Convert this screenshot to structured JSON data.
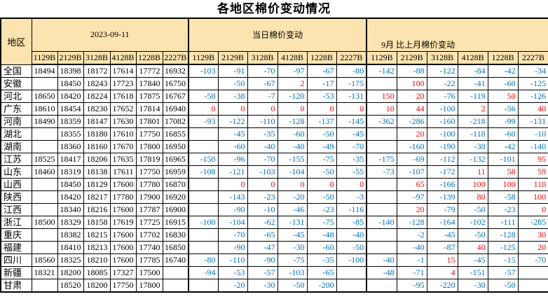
{
  "title": "各地区棉价变动情况",
  "colors": {
    "header_bg": "#FCE4B0",
    "negative_value": "#0070C0",
    "positive_value": "#FF0000",
    "border": "#000000"
  },
  "table": {
    "region_header": "地区",
    "grades": [
      "1129B",
      "2129B",
      "3128B",
      "4128B",
      "1228B",
      "2227B"
    ],
    "groups": [
      {
        "label": "2023-09-11"
      },
      {
        "label": "当日棉价变动"
      },
      {
        "label": "9月 比上月棉价变动"
      }
    ],
    "rows": [
      {
        "region": "全国",
        "prices": [
          "18494",
          "18398",
          "18172",
          "17614",
          "17772",
          "16932"
        ],
        "daily": [
          "-103",
          "-91",
          "-70",
          "-97",
          "-67",
          "-80"
        ],
        "monthly": [
          "-142",
          "-88",
          "-122",
          "-84",
          "-42",
          "-34"
        ]
      },
      {
        "region": "安徽",
        "prices": [
          "",
          "18450",
          "18243",
          "17723",
          "17840",
          "16750"
        ],
        "daily": [
          "",
          "-50",
          "-67",
          "2",
          "-17",
          "-175"
        ],
        "monthly": [
          "",
          "100",
          "-22",
          "-41",
          "-60",
          "-125"
        ]
      },
      {
        "region": "河北",
        "prices": [
          "18650",
          "18420",
          "18224",
          "17618",
          "17875",
          "16767"
        ],
        "daily": [
          "-50",
          "-38",
          "-7",
          "-120",
          "-53",
          "-131"
        ],
        "monthly": [
          "150",
          "20",
          "-76",
          "-119",
          "50",
          "-126"
        ]
      },
      {
        "region": "广东",
        "prices": [
          "18610",
          "18454",
          "18230",
          "17652",
          "17814",
          "16940"
        ],
        "daily": [
          "0",
          "0",
          "0",
          "0",
          "0",
          "0"
        ],
        "monthly": [
          "10",
          "44",
          "-100",
          "2",
          "-56",
          "40"
        ]
      },
      {
        "region": "河南",
        "prices": [
          "18490",
          "18359",
          "18147",
          "17630",
          "17801",
          "17082"
        ],
        "daily": [
          "-93",
          "-122",
          "-110",
          "-128",
          "-137",
          "-145"
        ],
        "monthly": [
          "-362",
          "-286",
          "-160",
          "-218",
          "-99",
          "-131"
        ]
      },
      {
        "region": "湖北",
        "prices": [
          "",
          "18355",
          "18180",
          "17610",
          "17750",
          "16855"
        ],
        "daily": [
          "",
          "-45",
          "-35",
          "-60",
          "-50",
          "-45"
        ],
        "monthly": [
          "",
          "20",
          "-100",
          "-118",
          "-60",
          "-10"
        ]
      },
      {
        "region": "湖南",
        "prices": [
          "",
          "18360",
          "18160",
          "17670",
          "17800",
          "16950"
        ],
        "daily": [
          "",
          "-60",
          "-40",
          "-40",
          "-49",
          "-70"
        ],
        "monthly": [
          "",
          "-160",
          "-190",
          "-30",
          "-42",
          "-140"
        ]
      },
      {
        "region": "江苏",
        "prices": [
          "18525",
          "18417",
          "18206",
          "17635",
          "17819",
          "16965"
        ],
        "daily": [
          "-150",
          "-96",
          "-70",
          "-155",
          "-75",
          "-35"
        ],
        "monthly": [
          "-175",
          "-69",
          "-112",
          "-132",
          "-101",
          "95"
        ]
      },
      {
        "region": "山东",
        "prices": [
          "18460",
          "18319",
          "18138",
          "17611",
          "17750",
          "16959"
        ],
        "daily": [
          "-108",
          "-121",
          "-103",
          "-104",
          "-50",
          "-55"
        ],
        "monthly": [
          "-73",
          "-107",
          "-172",
          "11",
          "58",
          "59"
        ]
      },
      {
        "region": "山西",
        "prices": [
          "",
          "18450",
          "18129",
          "17600",
          "17780",
          "16870"
        ],
        "daily": [
          "",
          "0",
          "0",
          "0",
          "0",
          "0"
        ],
        "monthly": [
          "",
          "65",
          "-166",
          "100",
          "100",
          "110"
        ]
      },
      {
        "region": "陕西",
        "prices": [
          "",
          "18420",
          "18217",
          "17780",
          "17900",
          "16920"
        ],
        "daily": [
          "",
          "-143",
          "-23",
          "-20",
          "-50",
          "-3"
        ],
        "monthly": [
          "",
          "-97",
          "-139",
          "80",
          "-58",
          "100"
        ]
      },
      {
        "region": "江西",
        "prices": [
          "",
          "18340",
          "18216",
          "17600",
          "17787",
          "16900"
        ],
        "daily": [
          "",
          "-90",
          "-10",
          "-46",
          "-23",
          "-116"
        ],
        "monthly": [
          "",
          "20",
          "-79",
          "-50",
          "-23",
          "0"
        ]
      },
      {
        "region": "浙江",
        "prices": [
          "18500",
          "18329",
          "18158",
          "17619",
          "17725",
          "16915"
        ],
        "daily": [
          "-100",
          "-104",
          "-62",
          "-131",
          "-75",
          "-85"
        ],
        "monthly": [
          "-140",
          "-128",
          "-164",
          "-102",
          "-111",
          "-285"
        ]
      },
      {
        "region": "重庆",
        "prices": [
          "",
          "18382",
          "18215",
          "17600",
          "17702",
          "16830"
        ],
        "daily": [
          "",
          "-70",
          "-65",
          "-45",
          "-48",
          "-40"
        ],
        "monthly": [
          "",
          "-2",
          "-45",
          "-50",
          "-128",
          "30"
        ]
      },
      {
        "region": "福建",
        "prices": [
          "",
          "18410",
          "18213",
          "17600",
          "17740",
          "16850"
        ],
        "daily": [
          "",
          "-90",
          "-47",
          "-30",
          "-60",
          "-50"
        ],
        "monthly": [
          "",
          "-40",
          "-87",
          "40",
          "-125",
          "20"
        ]
      },
      {
        "region": "四川",
        "prices": [
          "18560",
          "18325",
          "18210",
          "17600",
          "17785",
          "16740"
        ],
        "daily": [
          "-80",
          "-110",
          "-90",
          "-75",
          "-35",
          "-100"
        ],
        "monthly": [
          "-40",
          "-1",
          "15",
          "-45",
          "-15",
          "-70"
        ]
      },
      {
        "region": "新疆",
        "prices": [
          "18321",
          "18200",
          "18085",
          "17327",
          "17500",
          ""
        ],
        "daily": [
          "-94",
          "-53",
          "-57",
          "-103",
          "-65",
          ""
        ],
        "monthly": [
          "-48",
          "-71",
          "4",
          "-151",
          "-57",
          ""
        ]
      },
      {
        "region": "甘肃",
        "prices": [
          "",
          "18520",
          "18200",
          "17750",
          "17800",
          ""
        ],
        "daily": [
          "",
          "-20",
          "-30",
          "-50",
          "-200",
          ""
        ],
        "monthly": [
          "",
          "-95",
          "-220",
          "-30",
          "-50",
          ""
        ]
      }
    ]
  }
}
